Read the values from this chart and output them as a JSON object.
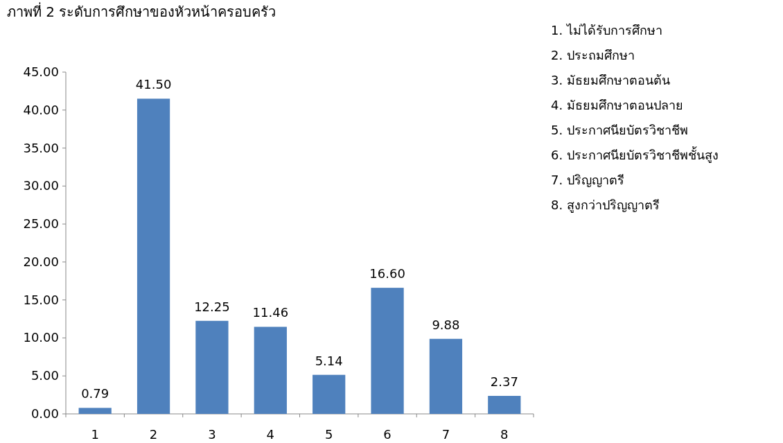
{
  "chart_data": {
    "type": "bar",
    "title": "ภาพที่ 2 ระดับการศึกษาของหัวหน้าครอบครัว",
    "categories": [
      "1",
      "2",
      "3",
      "4",
      "5",
      "6",
      "7",
      "8"
    ],
    "values": [
      0.79,
      41.5,
      12.25,
      11.46,
      5.14,
      16.6,
      9.88,
      2.37
    ],
    "value_labels": [
      "0.79",
      "41.50",
      "12.25",
      "11.46",
      "5.14",
      "16.60",
      "9.88",
      "2.37"
    ],
    "color": "#4f81bd",
    "ylim": [
      0,
      45
    ],
    "yticks": [
      {
        "value": 0,
        "label": "0.00"
      },
      {
        "value": 5,
        "label": "5.00"
      },
      {
        "value": 10,
        "label": "10.00"
      },
      {
        "value": 15,
        "label": "15.00"
      },
      {
        "value": 20,
        "label": "20.00"
      },
      {
        "value": 25,
        "label": "25.00"
      },
      {
        "value": 30,
        "label": "30.00"
      },
      {
        "value": 35,
        "label": "35.00"
      },
      {
        "value": 40,
        "label": "40.00"
      },
      {
        "value": 45,
        "label": "45.00"
      }
    ],
    "annotations": [
      "1. ไม่ได้รับการศึกษา",
      "2. ประถมศึกษา",
      "3. มัธยมศึกษาตอนต้น",
      "4. มัธยมศึกษาตอนปลาย",
      "5. ประกาศนียบัตรวิชาชีพ",
      "6. ประกาศนียบัตรวิชาชีพชั้นสูง",
      "7. ปริญญาตรี",
      "8. สูงกว่าปริญญาตรี"
    ]
  }
}
